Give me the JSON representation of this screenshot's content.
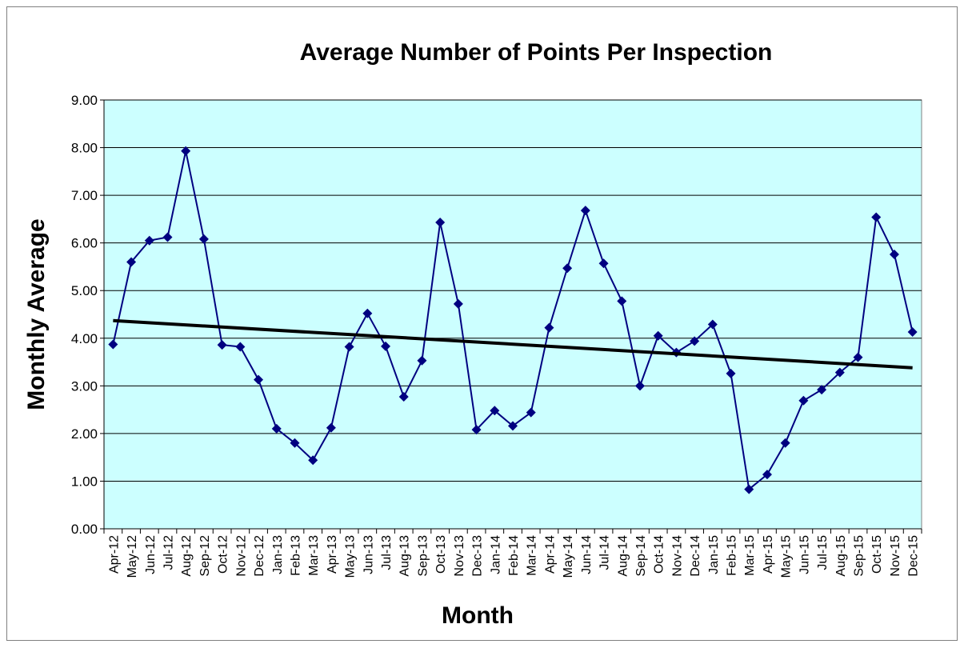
{
  "chart_data": {
    "type": "line",
    "title": "Average Number of Points Per Inspection",
    "x_label": "Month",
    "y_label": "Monthly Average",
    "categories": [
      "Apr-12",
      "May-12",
      "Jun-12",
      "Jul-12",
      "Aug-12",
      "Sep-12",
      "Oct-12",
      "Nov-12",
      "Dec-12",
      "Jan-13",
      "Feb-13",
      "Mar-13",
      "Apr-13",
      "May-13",
      "Jun-13",
      "Jul-13",
      "Aug-13",
      "Sep-13",
      "Oct-13",
      "Nov-13",
      "Dec-13",
      "Jan-14",
      "Feb-14",
      "Mar-14",
      "Apr-14",
      "May-14",
      "Jun-14",
      "Jul-14",
      "Aug-14",
      "Sep-14",
      "Oct-14",
      "Nov-14",
      "Dec-14",
      "Jan-15",
      "Feb-15",
      "Mar-15",
      "Apr-15",
      "May-15",
      "Jun-15",
      "Jul-15",
      "Aug-15",
      "Sep-15",
      "Oct-15",
      "Nov-15",
      "Dec-15"
    ],
    "series": [
      {
        "color": "#000080",
        "values": [
          3.87,
          5.6,
          6.05,
          6.12,
          7.93,
          6.08,
          3.86,
          3.82,
          3.13,
          2.1,
          1.8,
          1.44,
          2.12,
          3.82,
          4.52,
          3.83,
          2.77,
          3.53,
          6.43,
          4.72,
          2.08,
          2.48,
          2.16,
          2.44,
          4.22,
          5.47,
          6.68,
          5.57,
          4.78,
          3.0,
          4.05,
          3.7,
          3.94,
          4.29,
          3.26,
          0.83,
          1.14,
          1.8,
          2.69,
          2.92,
          3.28,
          3.6,
          6.54,
          5.76,
          4.13
        ]
      }
    ],
    "trendline": {
      "color": "#000000",
      "values": [
        4.37,
        3.38
      ]
    },
    "ylim": [
      0,
      9
    ],
    "yticks": [
      {
        "value": 0,
        "label": "0.00"
      },
      {
        "value": 1,
        "label": "1.00"
      },
      {
        "value": 2,
        "label": "2.00"
      },
      {
        "value": 3,
        "label": "3.00"
      },
      {
        "value": 4,
        "label": "4.00"
      },
      {
        "value": 5,
        "label": "5.00"
      },
      {
        "value": 6,
        "label": "6.00"
      },
      {
        "value": 7,
        "label": "7.00"
      },
      {
        "value": 8,
        "label": "8.00"
      },
      {
        "value": 9,
        "label": "9.00"
      }
    ],
    "grid": true,
    "plot_background": "#ccffff"
  }
}
